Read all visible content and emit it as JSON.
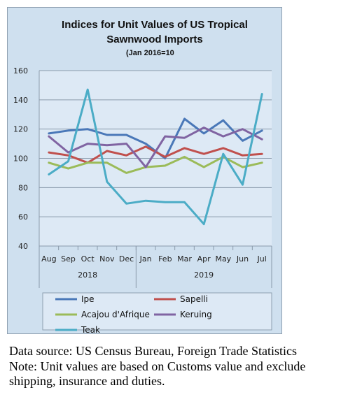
{
  "chart_data": {
    "type": "line",
    "title_line1": "Indices for Unit Values of US Tropical",
    "title_line2": "Sawnwood Imports",
    "subtitle": "(Jan 2016=10",
    "months": [
      "Aug",
      "Sep",
      "Oct",
      "Nov",
      "Dec",
      "Jan",
      "Feb",
      "Mar",
      "Apr",
      "May",
      "Jun",
      "Jul"
    ],
    "years": [
      {
        "label": "2018",
        "start": 0,
        "end": 4
      },
      {
        "label": "2019",
        "start": 5,
        "end": 11
      }
    ],
    "ylim": [
      40,
      160
    ],
    "yticks": [
      40,
      60,
      80,
      100,
      120,
      140,
      160
    ],
    "grid": true,
    "legend_position": "bottom",
    "series": [
      {
        "name": "Ipe",
        "color": "#4a78b8",
        "values": [
          117,
          119,
          120,
          116,
          116,
          110,
          100,
          127,
          117,
          126,
          112,
          119
        ]
      },
      {
        "name": "Sapelli",
        "color": "#c0504d",
        "values": [
          104,
          102,
          97,
          105,
          102,
          108,
          101,
          107,
          103,
          107,
          102,
          103
        ]
      },
      {
        "name": "Acajou d'Afrique",
        "color": "#9bbb59",
        "values": [
          97,
          93,
          97,
          97,
          90,
          94,
          95,
          101,
          94,
          101,
          94,
          97
        ]
      },
      {
        "name": "Keruing",
        "color": "#8064a2",
        "values": [
          115,
          104,
          110,
          109,
          110,
          94,
          115,
          114,
          121,
          115,
          120,
          113
        ]
      },
      {
        "name": "Teak",
        "color": "#4bacc6",
        "values": [
          89,
          98,
          147,
          84,
          69,
          71,
          70,
          70,
          55,
          103,
          82,
          144
        ]
      }
    ]
  },
  "notes": {
    "source": "Data source: US Census Bureau, Foreign Trade Statistics",
    "note_line1": "Note: Unit values are based on Customs value and exclude",
    "note_line2": "shipping, insurance and duties."
  }
}
